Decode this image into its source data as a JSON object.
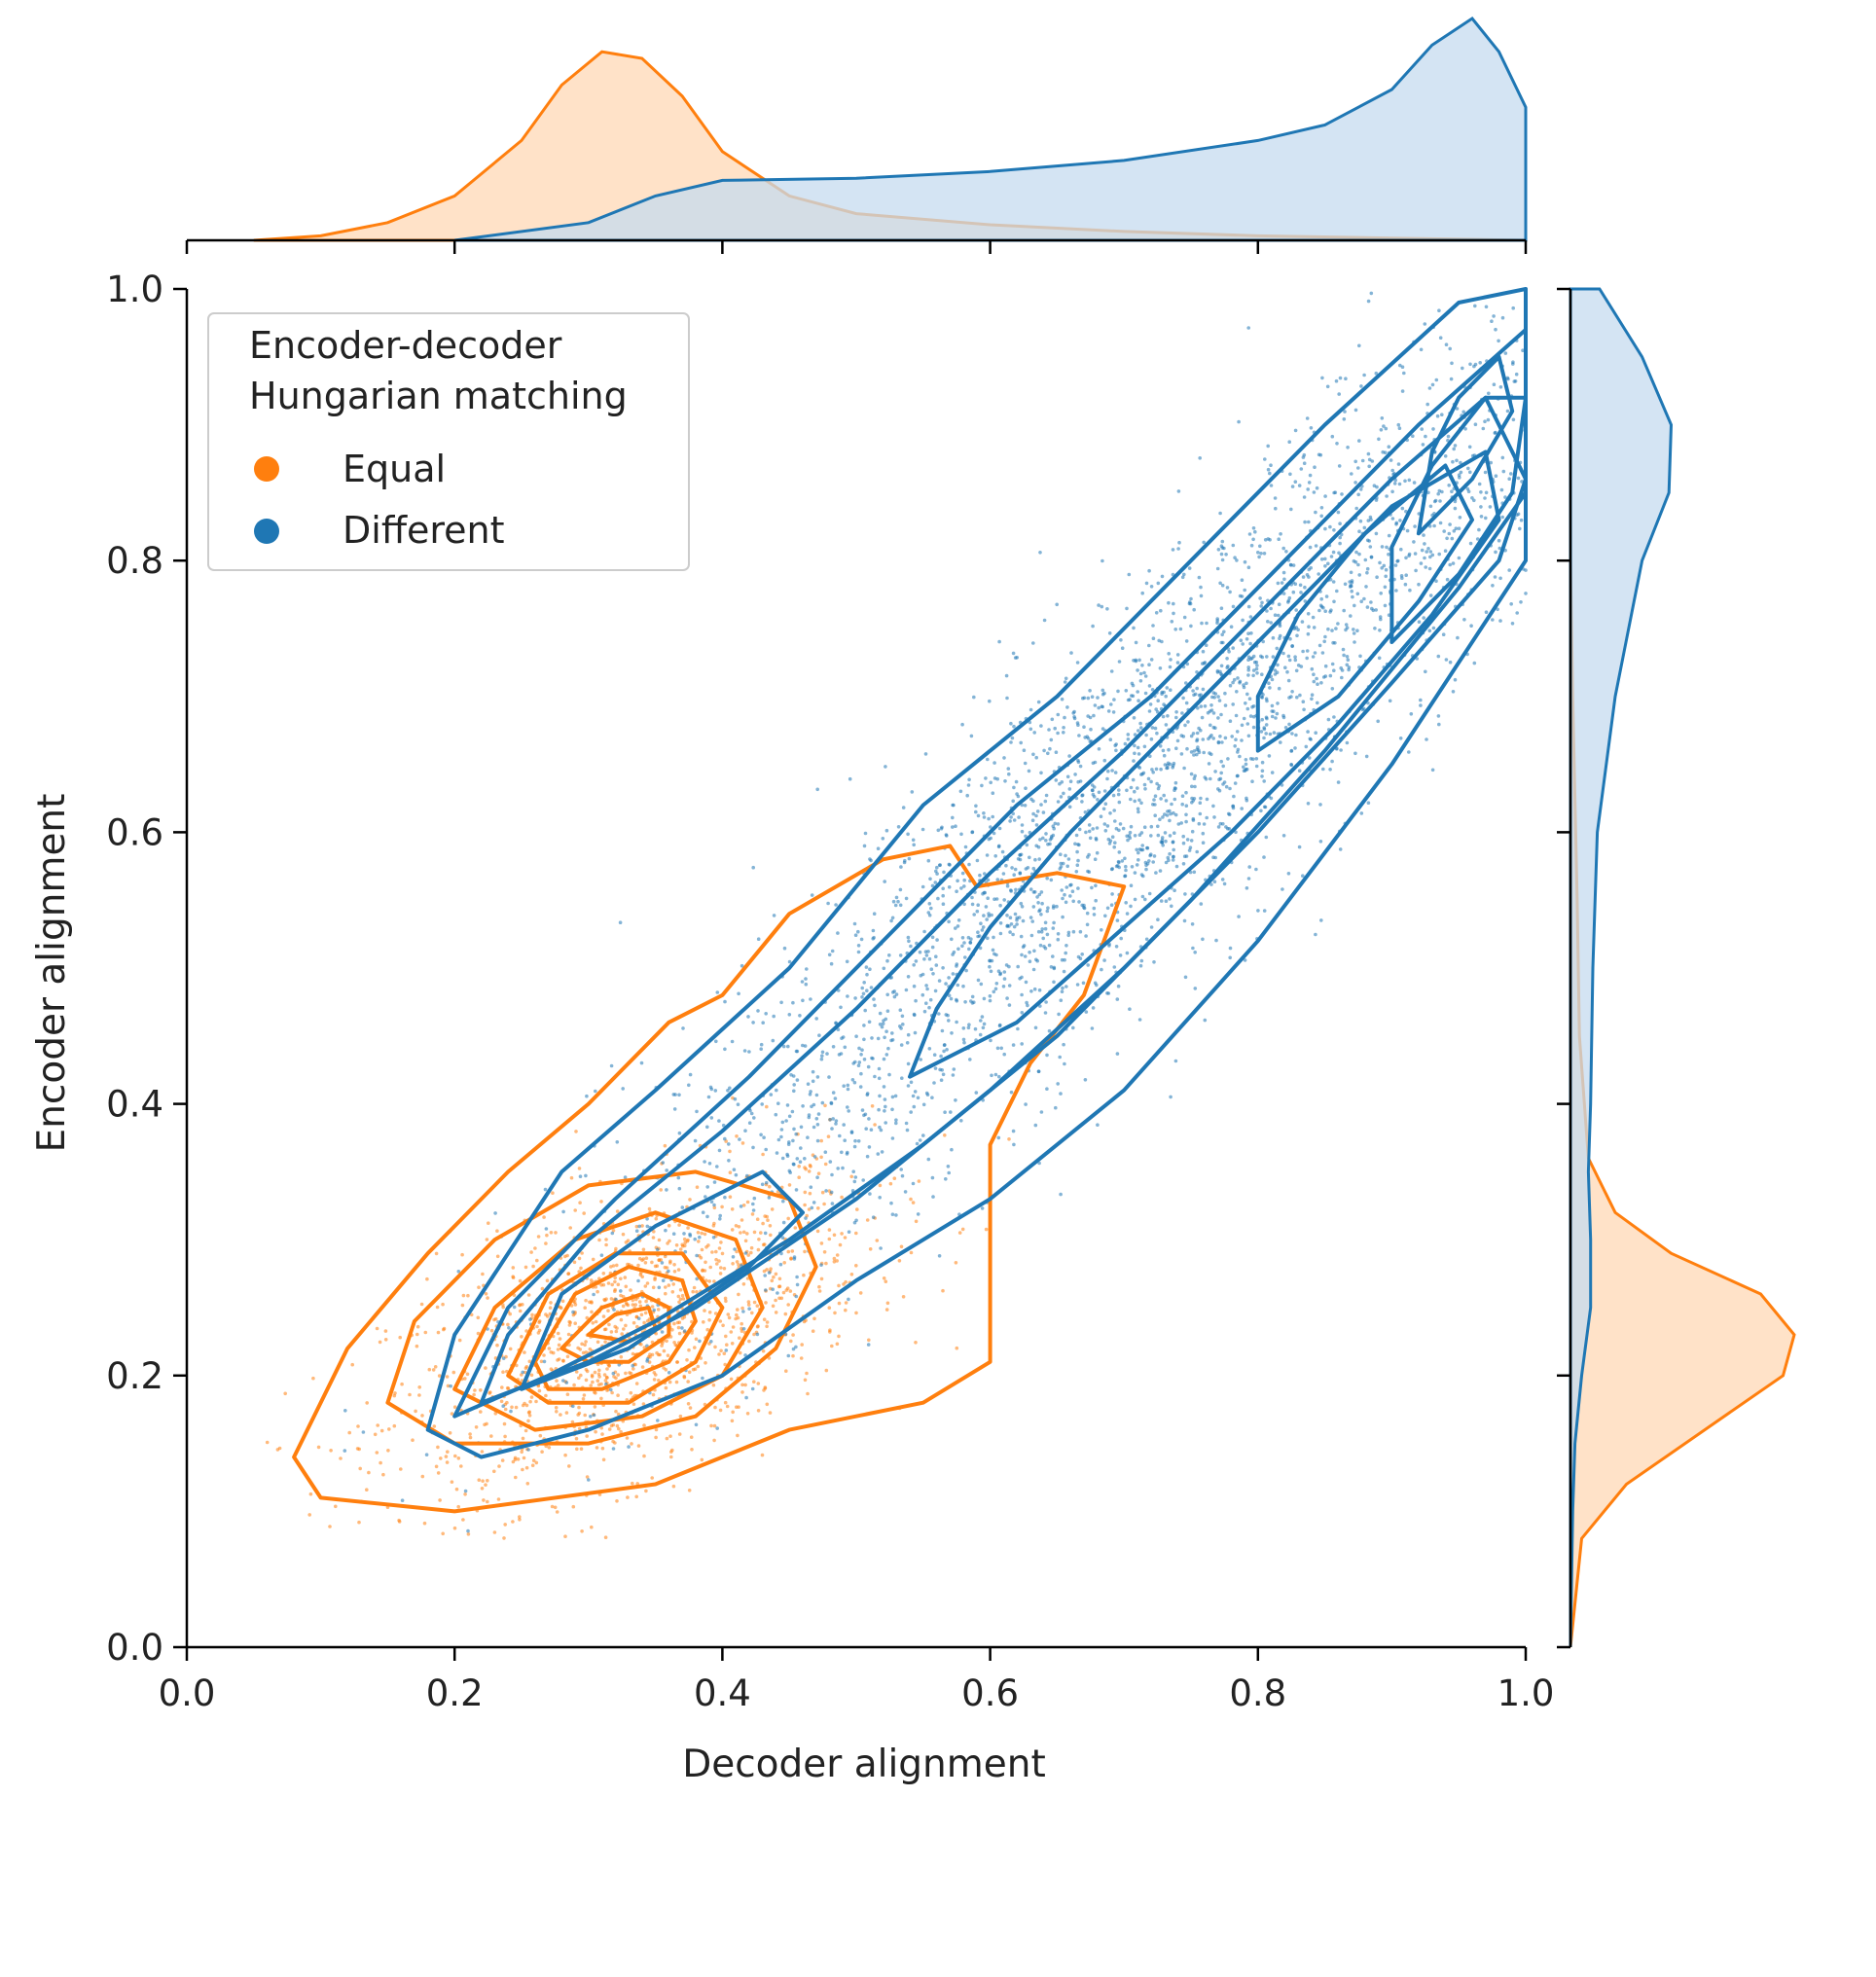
{
  "chart_data": {
    "type": "scatter",
    "subtype": "joint-plot with kde contours and marginal densities",
    "xlabel": "Decoder alignment",
    "ylabel": "Encoder alignment",
    "xlim": [
      0.0,
      1.0
    ],
    "ylim": [
      0.0,
      1.0
    ],
    "x_ticks": [
      "0.0",
      "0.2",
      "0.4",
      "0.6",
      "0.8",
      "1.0"
    ],
    "y_ticks": [
      "0.0",
      "0.2",
      "0.4",
      "0.6",
      "0.8",
      "1.0"
    ],
    "grid": false,
    "legend": {
      "title_line1": "Encoder-decoder",
      "title_line2": "Hungarian matching",
      "placement": "top-left",
      "entries": [
        "Equal",
        "Different"
      ]
    },
    "series": [
      {
        "name": "Equal",
        "color": "#ff7f0e",
        "fill": "#ffd8b6",
        "center": [
          0.33,
          0.23
        ],
        "spread": [
          0.09,
          0.06
        ],
        "correlation": 0.55,
        "marginal_x_density": [
          [
            0.05,
            0.0
          ],
          [
            0.1,
            0.02
          ],
          [
            0.15,
            0.08
          ],
          [
            0.2,
            0.2
          ],
          [
            0.25,
            0.45
          ],
          [
            0.28,
            0.7
          ],
          [
            0.31,
            0.85
          ],
          [
            0.34,
            0.82
          ],
          [
            0.37,
            0.65
          ],
          [
            0.4,
            0.4
          ],
          [
            0.45,
            0.2
          ],
          [
            0.5,
            0.12
          ],
          [
            0.6,
            0.07
          ],
          [
            0.7,
            0.04
          ],
          [
            0.8,
            0.02
          ],
          [
            0.9,
            0.01
          ],
          [
            1.0,
            0.0
          ]
        ],
        "marginal_y_density": [
          [
            0.0,
            0.0
          ],
          [
            0.08,
            0.05
          ],
          [
            0.12,
            0.25
          ],
          [
            0.16,
            0.6
          ],
          [
            0.2,
            0.95
          ],
          [
            0.23,
            1.0
          ],
          [
            0.26,
            0.85
          ],
          [
            0.29,
            0.45
          ],
          [
            0.32,
            0.2
          ],
          [
            0.36,
            0.08
          ],
          [
            0.45,
            0.04
          ],
          [
            0.55,
            0.03
          ],
          [
            0.7,
            0.01
          ],
          [
            0.8,
            0.0
          ],
          [
            1.0,
            0.0
          ]
        ],
        "contours": [
          [
            [
              0.08,
              0.14
            ],
            [
              0.12,
              0.22
            ],
            [
              0.18,
              0.29
            ],
            [
              0.24,
              0.35
            ],
            [
              0.3,
              0.4
            ],
            [
              0.36,
              0.46
            ],
            [
              0.4,
              0.48
            ],
            [
              0.45,
              0.54
            ],
            [
              0.52,
              0.58
            ],
            [
              0.57,
              0.59
            ],
            [
              0.59,
              0.56
            ],
            [
              0.65,
              0.57
            ],
            [
              0.7,
              0.56
            ],
            [
              0.67,
              0.48
            ],
            [
              0.63,
              0.43
            ],
            [
              0.6,
              0.37
            ],
            [
              0.6,
              0.28
            ],
            [
              0.6,
              0.21
            ],
            [
              0.55,
              0.18
            ],
            [
              0.45,
              0.16
            ],
            [
              0.35,
              0.12
            ],
            [
              0.2,
              0.1
            ],
            [
              0.1,
              0.11
            ],
            [
              0.08,
              0.14
            ]
          ],
          [
            [
              0.15,
              0.18
            ],
            [
              0.17,
              0.24
            ],
            [
              0.23,
              0.3
            ],
            [
              0.3,
              0.34
            ],
            [
              0.38,
              0.35
            ],
            [
              0.45,
              0.33
            ],
            [
              0.47,
              0.28
            ],
            [
              0.44,
              0.22
            ],
            [
              0.38,
              0.17
            ],
            [
              0.3,
              0.15
            ],
            [
              0.2,
              0.15
            ],
            [
              0.15,
              0.18
            ]
          ],
          [
            [
              0.2,
              0.19
            ],
            [
              0.23,
              0.25
            ],
            [
              0.29,
              0.3
            ],
            [
              0.35,
              0.32
            ],
            [
              0.41,
              0.3
            ],
            [
              0.43,
              0.25
            ],
            [
              0.4,
              0.2
            ],
            [
              0.34,
              0.17
            ],
            [
              0.26,
              0.16
            ],
            [
              0.2,
              0.19
            ]
          ],
          [
            [
              0.24,
              0.2
            ],
            [
              0.27,
              0.26
            ],
            [
              0.32,
              0.29
            ],
            [
              0.37,
              0.29
            ],
            [
              0.4,
              0.25
            ],
            [
              0.38,
              0.21
            ],
            [
              0.33,
              0.18
            ],
            [
              0.27,
              0.18
            ],
            [
              0.24,
              0.2
            ]
          ],
          [
            [
              0.26,
              0.21
            ],
            [
              0.29,
              0.26
            ],
            [
              0.33,
              0.28
            ],
            [
              0.37,
              0.27
            ],
            [
              0.38,
              0.24
            ],
            [
              0.36,
              0.21
            ],
            [
              0.31,
              0.19
            ],
            [
              0.27,
              0.19
            ],
            [
              0.26,
              0.21
            ]
          ],
          [
            [
              0.28,
              0.22
            ],
            [
              0.31,
              0.25
            ],
            [
              0.34,
              0.26
            ],
            [
              0.36,
              0.25
            ],
            [
              0.36,
              0.23
            ],
            [
              0.33,
              0.21
            ],
            [
              0.3,
              0.21
            ],
            [
              0.28,
              0.22
            ]
          ],
          [
            [
              0.3,
              0.23
            ],
            [
              0.32,
              0.245
            ],
            [
              0.345,
              0.25
            ],
            [
              0.35,
              0.235
            ],
            [
              0.33,
              0.225
            ],
            [
              0.3,
              0.23
            ]
          ]
        ]
      },
      {
        "name": "Different",
        "color": "#1f77b4",
        "fill": "#c6dbef",
        "center": [
          0.72,
          0.64
        ],
        "spread": [
          0.2,
          0.2
        ],
        "correlation": 0.93,
        "marginal_x_density": [
          [
            0.2,
            0.0
          ],
          [
            0.3,
            0.08
          ],
          [
            0.35,
            0.2
          ],
          [
            0.4,
            0.27
          ],
          [
            0.5,
            0.28
          ],
          [
            0.6,
            0.31
          ],
          [
            0.7,
            0.36
          ],
          [
            0.8,
            0.45
          ],
          [
            0.85,
            0.52
          ],
          [
            0.9,
            0.68
          ],
          [
            0.93,
            0.88
          ],
          [
            0.96,
            1.0
          ],
          [
            0.98,
            0.85
          ],
          [
            1.0,
            0.6
          ]
        ],
        "marginal_y_density": [
          [
            0.0,
            0.0
          ],
          [
            0.1,
            0.01
          ],
          [
            0.15,
            0.02
          ],
          [
            0.2,
            0.05
          ],
          [
            0.25,
            0.09
          ],
          [
            0.3,
            0.09
          ],
          [
            0.35,
            0.08
          ],
          [
            0.4,
            0.09
          ],
          [
            0.5,
            0.1
          ],
          [
            0.6,
            0.12
          ],
          [
            0.7,
            0.2
          ],
          [
            0.8,
            0.32
          ],
          [
            0.85,
            0.44
          ],
          [
            0.9,
            0.45
          ],
          [
            0.95,
            0.32
          ],
          [
            1.0,
            0.13
          ]
        ],
        "contours": [
          [
            [
              0.18,
              0.16
            ],
            [
              0.22,
              0.14
            ],
            [
              0.3,
              0.16
            ],
            [
              0.4,
              0.2
            ],
            [
              0.5,
              0.27
            ],
            [
              0.6,
              0.33
            ],
            [
              0.7,
              0.41
            ],
            [
              0.8,
              0.52
            ],
            [
              0.9,
              0.65
            ],
            [
              1.0,
              0.8
            ],
            [
              1.0,
              1.0
            ],
            [
              0.95,
              0.99
            ],
            [
              0.85,
              0.9
            ],
            [
              0.75,
              0.8
            ],
            [
              0.65,
              0.7
            ],
            [
              0.55,
              0.62
            ],
            [
              0.45,
              0.5
            ],
            [
              0.35,
              0.41
            ],
            [
              0.28,
              0.35
            ],
            [
              0.2,
              0.23
            ],
            [
              0.18,
              0.16
            ]
          ],
          [
            [
              0.2,
              0.17
            ],
            [
              0.27,
              0.2
            ],
            [
              0.35,
              0.24
            ],
            [
              0.45,
              0.3
            ],
            [
              0.55,
              0.37
            ],
            [
              0.65,
              0.45
            ],
            [
              0.75,
              0.55
            ],
            [
              0.85,
              0.66
            ],
            [
              0.95,
              0.78
            ],
            [
              1.0,
              0.85
            ],
            [
              1.0,
              0.97
            ],
            [
              0.92,
              0.9
            ],
            [
              0.82,
              0.8
            ],
            [
              0.72,
              0.7
            ],
            [
              0.62,
              0.62
            ],
            [
              0.52,
              0.52
            ],
            [
              0.42,
              0.42
            ],
            [
              0.32,
              0.33
            ],
            [
              0.24,
              0.25
            ],
            [
              0.2,
              0.17
            ]
          ],
          [
            [
              0.22,
              0.18
            ],
            [
              0.3,
              0.21
            ],
            [
              0.38,
              0.25
            ],
            [
              0.5,
              0.33
            ],
            [
              0.6,
              0.41
            ],
            [
              0.7,
              0.5
            ],
            [
              0.8,
              0.6
            ],
            [
              0.9,
              0.71
            ],
            [
              0.98,
              0.8
            ],
            [
              1.0,
              0.86
            ],
            [
              0.97,
              0.92
            ],
            [
              0.9,
              0.86
            ],
            [
              0.8,
              0.76
            ],
            [
              0.7,
              0.66
            ],
            [
              0.6,
              0.57
            ],
            [
              0.5,
              0.47
            ],
            [
              0.4,
              0.38
            ],
            [
              0.3,
              0.3
            ],
            [
              0.24,
              0.23
            ],
            [
              0.22,
              0.18
            ]
          ],
          [
            [
              0.25,
              0.19
            ],
            [
              0.33,
              0.22
            ],
            [
              0.42,
              0.28
            ],
            [
              0.46,
              0.32
            ],
            [
              0.43,
              0.35
            ],
            [
              0.35,
              0.31
            ],
            [
              0.28,
              0.26
            ],
            [
              0.25,
              0.19
            ]
          ],
          [
            [
              0.54,
              0.42
            ],
            [
              0.62,
              0.46
            ],
            [
              0.7,
              0.53
            ],
            [
              0.78,
              0.6
            ],
            [
              0.86,
              0.68
            ],
            [
              0.93,
              0.76
            ],
            [
              0.98,
              0.83
            ],
            [
              0.97,
              0.88
            ],
            [
              0.9,
              0.84
            ],
            [
              0.82,
              0.76
            ],
            [
              0.74,
              0.68
            ],
            [
              0.66,
              0.6
            ],
            [
              0.6,
              0.53
            ],
            [
              0.56,
              0.47
            ],
            [
              0.54,
              0.42
            ]
          ],
          [
            [
              0.8,
              0.66
            ],
            [
              0.86,
              0.7
            ],
            [
              0.92,
              0.77
            ],
            [
              0.96,
              0.83
            ],
            [
              0.94,
              0.87
            ],
            [
              0.88,
              0.82
            ],
            [
              0.83,
              0.76
            ],
            [
              0.8,
              0.7
            ],
            [
              0.8,
              0.66
            ]
          ],
          [
            [
              0.9,
              0.74
            ],
            [
              0.95,
              0.79
            ],
            [
              0.99,
              0.85
            ],
            [
              1.0,
              0.92
            ],
            [
              0.97,
              0.92
            ],
            [
              0.93,
              0.87
            ],
            [
              0.9,
              0.81
            ],
            [
              0.9,
              0.74
            ]
          ],
          [
            [
              0.92,
              0.82
            ],
            [
              0.96,
              0.86
            ],
            [
              0.99,
              0.91
            ],
            [
              0.98,
              0.95
            ],
            [
              0.95,
              0.92
            ],
            [
              0.93,
              0.88
            ],
            [
              0.92,
              0.82
            ]
          ]
        ]
      }
    ]
  }
}
